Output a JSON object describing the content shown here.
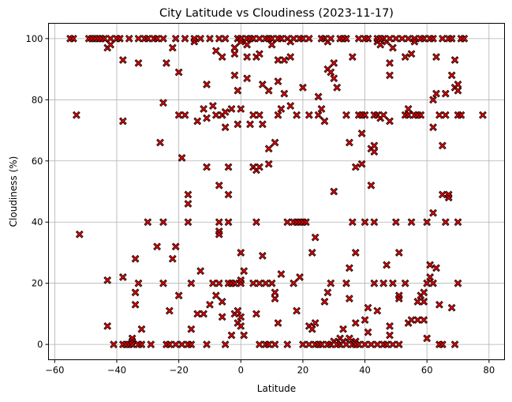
{
  "colors": {
    "marker_fill": "#e00000",
    "marker_edge": "#000000",
    "grid": "#b0b0b0"
  },
  "chart_data": {
    "type": "scatter",
    "title": "City Latitude vs Cloudiness (2023-11-17)",
    "xlabel": "Latitude",
    "ylabel": "Cloudiness (%)",
    "xlim": [
      -62,
      85
    ],
    "ylim": [
      -5,
      105
    ],
    "xticks": [
      -60,
      -40,
      -20,
      0,
      20,
      40,
      60,
      80
    ],
    "yticks": [
      0,
      20,
      40,
      60,
      80,
      100
    ],
    "grid": true,
    "marker": "x-filled",
    "points": [
      [
        -55,
        100
      ],
      [
        -54,
        100
      ],
      [
        -53,
        75
      ],
      [
        -52,
        36
      ],
      [
        -49,
        100
      ],
      [
        -48,
        100
      ],
      [
        -47,
        100
      ],
      [
        -46,
        100
      ],
      [
        -45,
        100
      ],
      [
        -44,
        100
      ],
      [
        -43,
        97
      ],
      [
        -43,
        21
      ],
      [
        -43,
        6
      ],
      [
        -42,
        98
      ],
      [
        -42,
        100
      ],
      [
        -41,
        0
      ],
      [
        -40,
        100
      ],
      [
        -39,
        100
      ],
      [
        -38,
        93
      ],
      [
        -38,
        73
      ],
      [
        -38,
        22
      ],
      [
        -38,
        0
      ],
      [
        -37,
        0
      ],
      [
        -36,
        0
      ],
      [
        -36,
        100
      ],
      [
        -35,
        1
      ],
      [
        -35,
        2
      ],
      [
        -35,
        0
      ],
      [
        -34,
        13
      ],
      [
        -34,
        28
      ],
      [
        -34,
        17
      ],
      [
        -33,
        100
      ],
      [
        -33,
        92
      ],
      [
        -33,
        20
      ],
      [
        -33,
        0
      ],
      [
        -32,
        5
      ],
      [
        -32,
        0
      ],
      [
        -31,
        100
      ],
      [
        -30,
        100
      ],
      [
        -30,
        40
      ],
      [
        -29,
        0
      ],
      [
        -28,
        100
      ],
      [
        -27,
        100
      ],
      [
        -27,
        32
      ],
      [
        -26,
        66
      ],
      [
        -25,
        100
      ],
      [
        -25,
        79
      ],
      [
        -25,
        40
      ],
      [
        -25,
        20
      ],
      [
        -24,
        0
      ],
      [
        -24,
        92
      ],
      [
        -23,
        0
      ],
      [
        -23,
        11
      ],
      [
        -22,
        97
      ],
      [
        -22,
        28
      ],
      [
        -21,
        100
      ],
      [
        -21,
        32
      ],
      [
        -21,
        0
      ],
      [
        -20,
        89
      ],
      [
        -20,
        75
      ],
      [
        -20,
        16
      ],
      [
        -19,
        61
      ],
      [
        -19,
        0
      ],
      [
        -18,
        75
      ],
      [
        -18,
        100
      ],
      [
        -17,
        0
      ],
      [
        -17,
        49
      ],
      [
        -17,
        46
      ],
      [
        -17,
        40
      ],
      [
        -16,
        20
      ],
      [
        -16,
        5
      ],
      [
        -16,
        0
      ],
      [
        -15,
        99
      ],
      [
        -15,
        100
      ],
      [
        -14,
        73
      ],
      [
        -14,
        10
      ],
      [
        -13,
        100
      ],
      [
        -13,
        24
      ],
      [
        -12,
        77
      ],
      [
        -12,
        10
      ],
      [
        -11,
        85
      ],
      [
        -11,
        58
      ],
      [
        -11,
        74
      ],
      [
        -11,
        0
      ],
      [
        -10,
        100
      ],
      [
        -10,
        13
      ],
      [
        -9,
        78
      ],
      [
        -9,
        20
      ],
      [
        -8,
        75
      ],
      [
        -8,
        96
      ],
      [
        -8,
        16
      ],
      [
        -7,
        100
      ],
      [
        -7,
        52
      ],
      [
        -7,
        40
      ],
      [
        -7,
        37
      ],
      [
        -7,
        36
      ],
      [
        -7,
        20
      ],
      [
        -6,
        94
      ],
      [
        -6,
        75
      ],
      [
        -6,
        9
      ],
      [
        -6,
        14
      ],
      [
        -5,
        100
      ],
      [
        -5,
        76
      ],
      [
        -5,
        71
      ],
      [
        -5,
        0
      ],
      [
        -4,
        58
      ],
      [
        -4,
        49
      ],
      [
        -4,
        40
      ],
      [
        -4,
        20
      ],
      [
        -3,
        77
      ],
      [
        -3,
        20
      ],
      [
        -3,
        3
      ],
      [
        -2,
        97
      ],
      [
        -2,
        88
      ],
      [
        -2,
        95
      ],
      [
        -2,
        20
      ],
      [
        -2,
        10
      ],
      [
        -1,
        100
      ],
      [
        -1,
        83
      ],
      [
        -1,
        72
      ],
      [
        -1,
        11
      ],
      [
        -1,
        7
      ],
      [
        0,
        99
      ],
      [
        0,
        100
      ],
      [
        0,
        77
      ],
      [
        0,
        30
      ],
      [
        0,
        20
      ],
      [
        0,
        21
      ],
      [
        0,
        9
      ],
      [
        0,
        6
      ],
      [
        1,
        24
      ],
      [
        1,
        3
      ],
      [
        2,
        98
      ],
      [
        2,
        100
      ],
      [
        2,
        94
      ],
      [
        2,
        87
      ],
      [
        3,
        100
      ],
      [
        3,
        72
      ],
      [
        4,
        100
      ],
      [
        4,
        75
      ],
      [
        4,
        58
      ],
      [
        4,
        20
      ],
      [
        5,
        94
      ],
      [
        5,
        57
      ],
      [
        5,
        40
      ],
      [
        5,
        10
      ],
      [
        6,
        95
      ],
      [
        6,
        100
      ],
      [
        6,
        75
      ],
      [
        6,
        58
      ],
      [
        6,
        20
      ],
      [
        6,
        0
      ],
      [
        7,
        29
      ],
      [
        7,
        85
      ],
      [
        7,
        72
      ],
      [
        8,
        100
      ],
      [
        8,
        20
      ],
      [
        8,
        0
      ],
      [
        9,
        100
      ],
      [
        9,
        83
      ],
      [
        9,
        64
      ],
      [
        9,
        59
      ],
      [
        9,
        0
      ],
      [
        10,
        98
      ],
      [
        10,
        100
      ],
      [
        10,
        20
      ],
      [
        11,
        17
      ],
      [
        11,
        15
      ],
      [
        11,
        66
      ],
      [
        11,
        0
      ],
      [
        12,
        100
      ],
      [
        12,
        86
      ],
      [
        12,
        75
      ],
      [
        12,
        93
      ],
      [
        12,
        7
      ],
      [
        13,
        100
      ],
      [
        13,
        77
      ],
      [
        13,
        23
      ],
      [
        14,
        93
      ],
      [
        14,
        82
      ],
      [
        15,
        100
      ],
      [
        15,
        40
      ],
      [
        15,
        0
      ],
      [
        16,
        99
      ],
      [
        16,
        94
      ],
      [
        16,
        78
      ],
      [
        17,
        100
      ],
      [
        17,
        40
      ],
      [
        17,
        20
      ],
      [
        18,
        75
      ],
      [
        18,
        40
      ],
      [
        18,
        11
      ],
      [
        19,
        100
      ],
      [
        19,
        22
      ],
      [
        19,
        40
      ],
      [
        20,
        100
      ],
      [
        20,
        84
      ],
      [
        20,
        40
      ],
      [
        20,
        0
      ],
      [
        21,
        40
      ],
      [
        22,
        100
      ],
      [
        22,
        75
      ],
      [
        22,
        6
      ],
      [
        22,
        0
      ],
      [
        23,
        5
      ],
      [
        23,
        30
      ],
      [
        24,
        35
      ],
      [
        24,
        7
      ],
      [
        24,
        0
      ],
      [
        25,
        75
      ],
      [
        25,
        81
      ],
      [
        25,
        0
      ],
      [
        26,
        100
      ],
      [
        26,
        77
      ],
      [
        26,
        0
      ],
      [
        27,
        100
      ],
      [
        27,
        73
      ],
      [
        27,
        14
      ],
      [
        28,
        99
      ],
      [
        28,
        90
      ],
      [
        28,
        17
      ],
      [
        28,
        0
      ],
      [
        29,
        100
      ],
      [
        29,
        89
      ],
      [
        29,
        20
      ],
      [
        29,
        0
      ],
      [
        30,
        87
      ],
      [
        30,
        92
      ],
      [
        30,
        50
      ],
      [
        30,
        1
      ],
      [
        31,
        84
      ],
      [
        31,
        0
      ],
      [
        32,
        100
      ],
      [
        32,
        2
      ],
      [
        32,
        0
      ],
      [
        33,
        100
      ],
      [
        33,
        5
      ],
      [
        33,
        1
      ],
      [
        34,
        100
      ],
      [
        34,
        75
      ],
      [
        34,
        20
      ],
      [
        34,
        0
      ],
      [
        35,
        66
      ],
      [
        35,
        25
      ],
      [
        35,
        15
      ],
      [
        35,
        2
      ],
      [
        36,
        94
      ],
      [
        36,
        40
      ],
      [
        36,
        0
      ],
      [
        37,
        58
      ],
      [
        37,
        30
      ],
      [
        37,
        7
      ],
      [
        37,
        1
      ],
      [
        37,
        0
      ],
      [
        38,
        75
      ],
      [
        38,
        100
      ],
      [
        38,
        0
      ],
      [
        39,
        75
      ],
      [
        39,
        59
      ],
      [
        39,
        69
      ],
      [
        40,
        100
      ],
      [
        40,
        75
      ],
      [
        40,
        40
      ],
      [
        40,
        8
      ],
      [
        40,
        0
      ],
      [
        41,
        100
      ],
      [
        41,
        12
      ],
      [
        41,
        4
      ],
      [
        42,
        64
      ],
      [
        42,
        52
      ],
      [
        42,
        0
      ],
      [
        43,
        75
      ],
      [
        43,
        63
      ],
      [
        43,
        65
      ],
      [
        43,
        40
      ],
      [
        43,
        20
      ],
      [
        44,
        100
      ],
      [
        44,
        99
      ],
      [
        44,
        75
      ],
      [
        44,
        11
      ],
      [
        44,
        0
      ],
      [
        45,
        98
      ],
      [
        45,
        74
      ],
      [
        45,
        100
      ],
      [
        46,
        100
      ],
      [
        46,
        75
      ],
      [
        46,
        20
      ],
      [
        46,
        0
      ],
      [
        47,
        99
      ],
      [
        47,
        26
      ],
      [
        47,
        0
      ],
      [
        48,
        100
      ],
      [
        48,
        92
      ],
      [
        48,
        88
      ],
      [
        48,
        73
      ],
      [
        48,
        6
      ],
      [
        48,
        3
      ],
      [
        49,
        97
      ],
      [
        49,
        20
      ],
      [
        49,
        0
      ],
      [
        50,
        100
      ],
      [
        50,
        40
      ],
      [
        51,
        30
      ],
      [
        51,
        16
      ],
      [
        51,
        15
      ],
      [
        51,
        0
      ],
      [
        52,
        100
      ],
      [
        53,
        94
      ],
      [
        53,
        75
      ],
      [
        53,
        20
      ],
      [
        54,
        100
      ],
      [
        54,
        77
      ],
      [
        54,
        75
      ],
      [
        54,
        7
      ],
      [
        55,
        95
      ],
      [
        55,
        40
      ],
      [
        55,
        8
      ],
      [
        56,
        100
      ],
      [
        56,
        99
      ],
      [
        56,
        75
      ],
      [
        57,
        75
      ],
      [
        57,
        14
      ],
      [
        57,
        8
      ],
      [
        58,
        100
      ],
      [
        58,
        75
      ],
      [
        58,
        16
      ],
      [
        59,
        100
      ],
      [
        59,
        17
      ],
      [
        59,
        14
      ],
      [
        59,
        8
      ],
      [
        60,
        40
      ],
      [
        60,
        20
      ],
      [
        60,
        2
      ],
      [
        61,
        100
      ],
      [
        61,
        26
      ],
      [
        61,
        22
      ],
      [
        62,
        80
      ],
      [
        62,
        43
      ],
      [
        62,
        20
      ],
      [
        62,
        71
      ],
      [
        62,
        100
      ],
      [
        63,
        94
      ],
      [
        63,
        82
      ],
      [
        63,
        25
      ],
      [
        64,
        75
      ],
      [
        64,
        13
      ],
      [
        64,
        0
      ],
      [
        65,
        100
      ],
      [
        65,
        65
      ],
      [
        65,
        49
      ],
      [
        65,
        0
      ],
      [
        66,
        82
      ],
      [
        66,
        75
      ],
      [
        66,
        40
      ],
      [
        67,
        100
      ],
      [
        67,
        49
      ],
      [
        67,
        48
      ],
      [
        68,
        88
      ],
      [
        68,
        12
      ],
      [
        68,
        100
      ],
      [
        69,
        93
      ],
      [
        69,
        84
      ],
      [
        69,
        0
      ],
      [
        70,
        83
      ],
      [
        70,
        75
      ],
      [
        70,
        85
      ],
      [
        70,
        40
      ],
      [
        70,
        20
      ],
      [
        71,
        100
      ],
      [
        71,
        75
      ],
      [
        72,
        100
      ],
      [
        78,
        75
      ]
    ]
  }
}
